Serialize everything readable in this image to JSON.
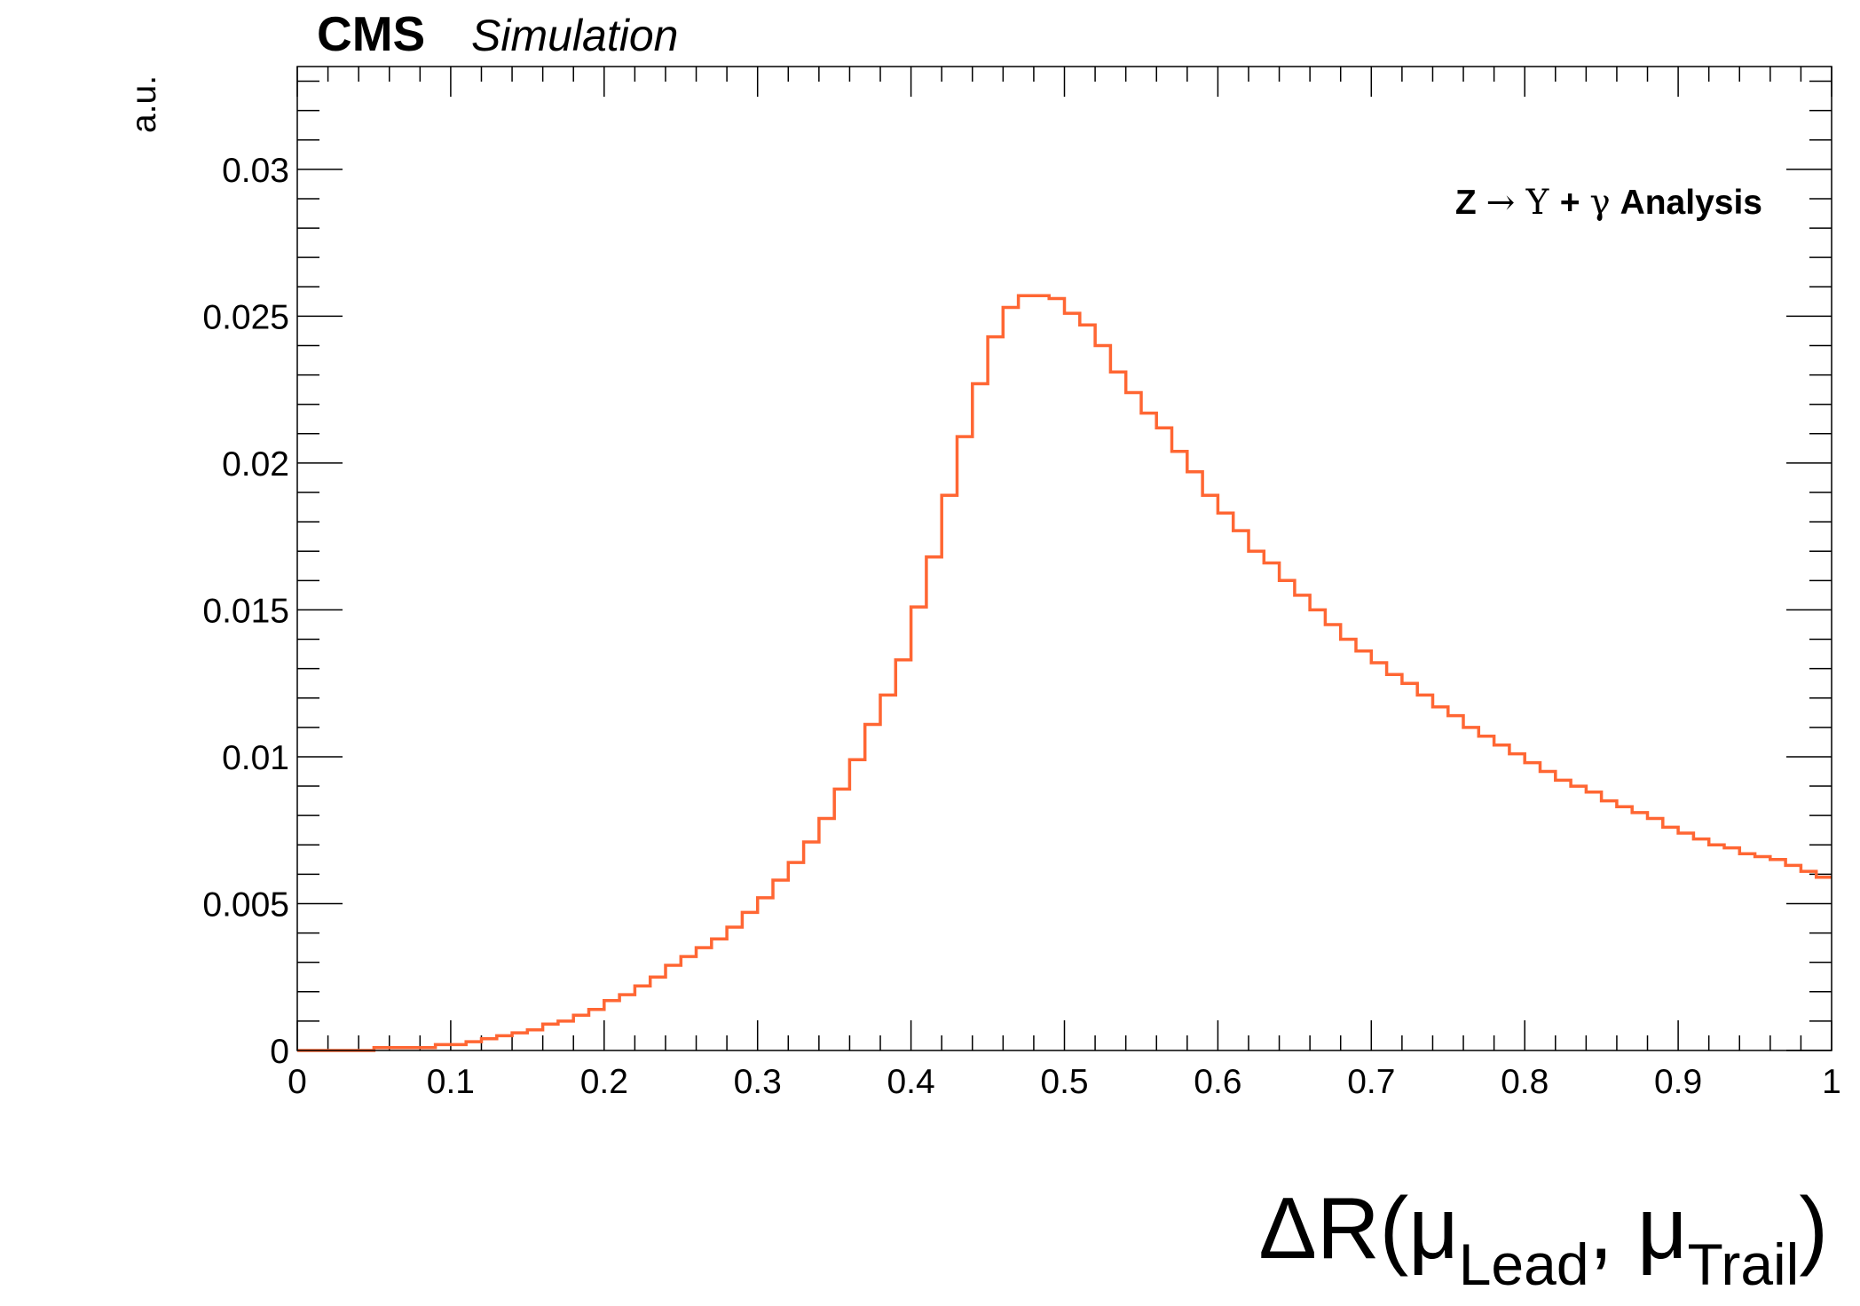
{
  "header": {
    "experiment": "CMS",
    "status": "Simulation"
  },
  "annotation": {
    "pre": "Z ",
    "arrow": "→",
    "upsilon": " Υ ",
    "plus": "+ ",
    "gamma": "γ",
    "post": " Analysis"
  },
  "axis_labels": {
    "y": "a.u.",
    "x_main": "ΔR(μ",
    "x_sub1": "Lead",
    "x_mid": ", μ",
    "x_sub2": "Trail",
    "x_end": ")"
  },
  "colors": {
    "line": "#ff6633",
    "axis": "#000000",
    "background": "#ffffff"
  },
  "chart_data": {
    "type": "histogram",
    "xlim": [
      0,
      1
    ],
    "ylim": [
      0,
      0.0335
    ],
    "x_ticks": [
      "0",
      "0.1",
      "0.2",
      "0.3",
      "0.4",
      "0.5",
      "0.6",
      "0.7",
      "0.8",
      "0.9",
      "1"
    ],
    "y_ticks": [
      "0",
      "0.005",
      "0.01",
      "0.015",
      "0.02",
      "0.025",
      "0.03"
    ],
    "grid": false,
    "bin_width": 0.01,
    "bin_start": 0.0,
    "values": [
      0.0,
      0.0,
      0.0,
      0.0,
      0.0,
      0.0001,
      0.0001,
      0.0001,
      0.0001,
      0.0002,
      0.0002,
      0.0003,
      0.0004,
      0.0005,
      0.0006,
      0.0007,
      0.0009,
      0.001,
      0.0012,
      0.0014,
      0.0017,
      0.0019,
      0.0022,
      0.0025,
      0.0029,
      0.0032,
      0.0035,
      0.0038,
      0.0042,
      0.0047,
      0.0052,
      0.0058,
      0.0064,
      0.0071,
      0.0079,
      0.0089,
      0.0099,
      0.0111,
      0.0121,
      0.0133,
      0.0151,
      0.0168,
      0.0189,
      0.0209,
      0.0227,
      0.0243,
      0.0253,
      0.0257,
      0.0257,
      0.0256,
      0.0251,
      0.0247,
      0.024,
      0.0231,
      0.0224,
      0.0217,
      0.0212,
      0.0204,
      0.0197,
      0.0189,
      0.0183,
      0.0177,
      0.017,
      0.0166,
      0.016,
      0.0155,
      0.015,
      0.0145,
      0.014,
      0.0136,
      0.0132,
      0.0128,
      0.0125,
      0.0121,
      0.0117,
      0.0114,
      0.011,
      0.0107,
      0.0104,
      0.0101,
      0.0098,
      0.0095,
      0.0092,
      0.009,
      0.0088,
      0.0085,
      0.0083,
      0.0081,
      0.0079,
      0.0076,
      0.0074,
      0.0072,
      0.007,
      0.0069,
      0.0067,
      0.0066,
      0.0065,
      0.0063,
      0.0061,
      0.0059
    ]
  }
}
